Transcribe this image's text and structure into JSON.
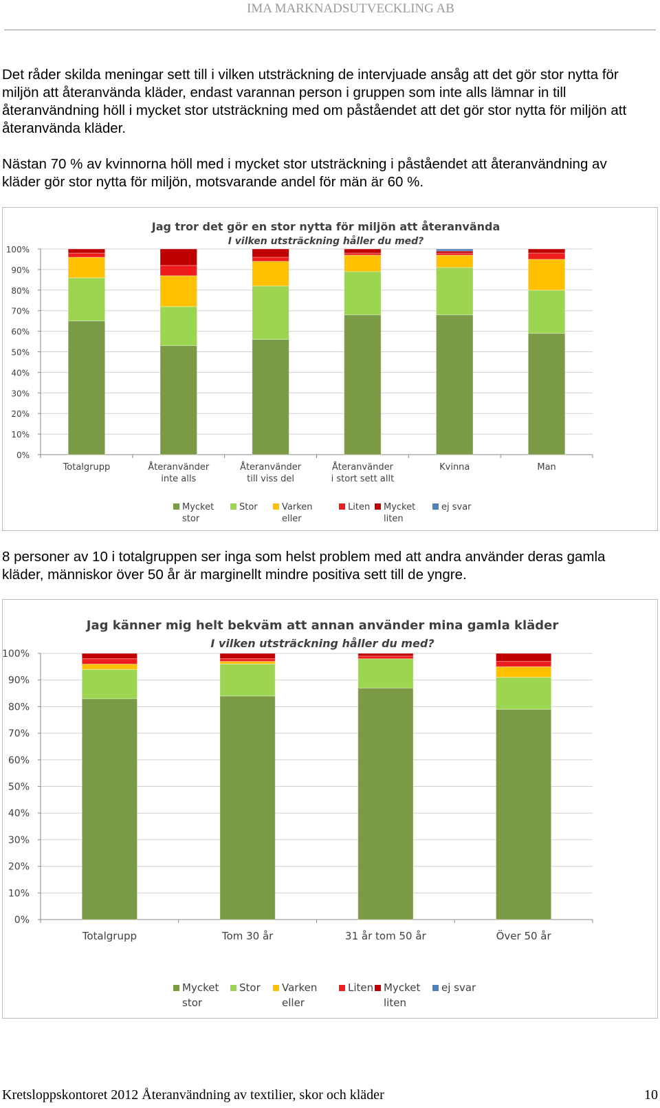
{
  "header": {
    "company": "IMA MARKNADSUTVECKLING AB"
  },
  "paragraphs": {
    "p1": "Det råder skilda meningar sett till i vilken utsträckning de intervjuade ansåg att det gör stor nytta för miljön att återanvända kläder, endast varannan person i gruppen som inte alls lämnar in till återanvändning höll i mycket stor utsträckning med om påståendet att det gör stor nytta för miljön att återanvända kläder.",
    "p2": "Nästan 70 % av kvinnorna höll med i mycket stor utsträckning i påståendet att återanvändning av kläder gör stor nytta för miljön, motsvarande andel för män är 60 %.",
    "p3": "8 personer av 10 i totalgruppen ser inga som helst problem med att andra använder deras gamla kläder, människor över 50 år är marginellt mindre positiva sett till de yngre."
  },
  "chart_data": [
    {
      "type": "bar",
      "stacked": true,
      "title": "Jag tror det gör en stor nytta för miljön att återanvända",
      "subtitle": "I vilken utsträckning håller du med?",
      "categories": [
        [
          "Totalgrupp"
        ],
        [
          "Återanvänder",
          "inte alls"
        ],
        [
          "Återanvänder",
          "till viss del"
        ],
        [
          "Återanvänder",
          "i stort sett allt"
        ],
        [
          "Kvinna"
        ],
        [
          "Man"
        ]
      ],
      "yticks": [
        "0%",
        "10%",
        "20%",
        "30%",
        "40%",
        "50%",
        "60%",
        "70%",
        "80%",
        "90%",
        "100%"
      ],
      "ylim": [
        0,
        100
      ],
      "series": [
        {
          "name": [
            "Mycket",
            "stor"
          ],
          "values": [
            65,
            53,
            56,
            68,
            68,
            59
          ]
        },
        {
          "name": [
            "Stor"
          ],
          "values": [
            21,
            19,
            26,
            21,
            23,
            21
          ]
        },
        {
          "name": [
            "Varken",
            "eller"
          ],
          "values": [
            10,
            15,
            12,
            8,
            6,
            15
          ]
        },
        {
          "name": [
            "Liten"
          ],
          "values": [
            2,
            5,
            2,
            1,
            1,
            3
          ]
        },
        {
          "name": [
            "Mycket",
            "liten"
          ],
          "values": [
            2,
            8,
            4,
            2,
            1,
            2
          ]
        },
        {
          "name": [
            "ej svar"
          ],
          "values": [
            0,
            0,
            0,
            0,
            1,
            0
          ]
        }
      ],
      "colors": [
        "#7a9a45",
        "#9cd650",
        "#ffc000",
        "#ee1c1c",
        "#c00000",
        "#4f81bd"
      ],
      "legend_position": "bottom",
      "grid": true
    },
    {
      "type": "bar",
      "stacked": true,
      "title": "Jag känner mig helt bekväm att annan använder mina gamla kläder",
      "subtitle": "I vilken utsträckning håller du med?",
      "categories": [
        [
          "Totalgrupp"
        ],
        [
          "Tom 30 år"
        ],
        [
          "31 år tom 50 år"
        ],
        [
          "Över 50 år"
        ]
      ],
      "yticks": [
        "0%",
        "10%",
        "20%",
        "30%",
        "40%",
        "50%",
        "60%",
        "70%",
        "80%",
        "90%",
        "100%"
      ],
      "ylim": [
        0,
        100
      ],
      "series": [
        {
          "name": [
            "Mycket",
            "stor"
          ],
          "values": [
            83,
            84,
            87,
            79
          ]
        },
        {
          "name": [
            "Stor"
          ],
          "values": [
            11,
            12,
            11,
            12
          ]
        },
        {
          "name": [
            "Varken",
            "eller"
          ],
          "values": [
            2,
            1,
            0,
            4
          ]
        },
        {
          "name": [
            "Liten"
          ],
          "values": [
            2,
            1,
            1,
            2
          ]
        },
        {
          "name": [
            "Mycket",
            "liten"
          ],
          "values": [
            2,
            2,
            1,
            3
          ]
        },
        {
          "name": [
            "ej svar"
          ],
          "values": [
            0,
            0,
            0,
            0
          ]
        }
      ],
      "colors": [
        "#7a9a45",
        "#9cd650",
        "#ffc000",
        "#ee1c1c",
        "#c00000",
        "#4f81bd"
      ],
      "legend_position": "bottom",
      "grid": true
    }
  ],
  "footer": {
    "text": "Kretsloppskontoret 2012 Återanvändning av textilier, skor och kläder",
    "page": "10"
  }
}
